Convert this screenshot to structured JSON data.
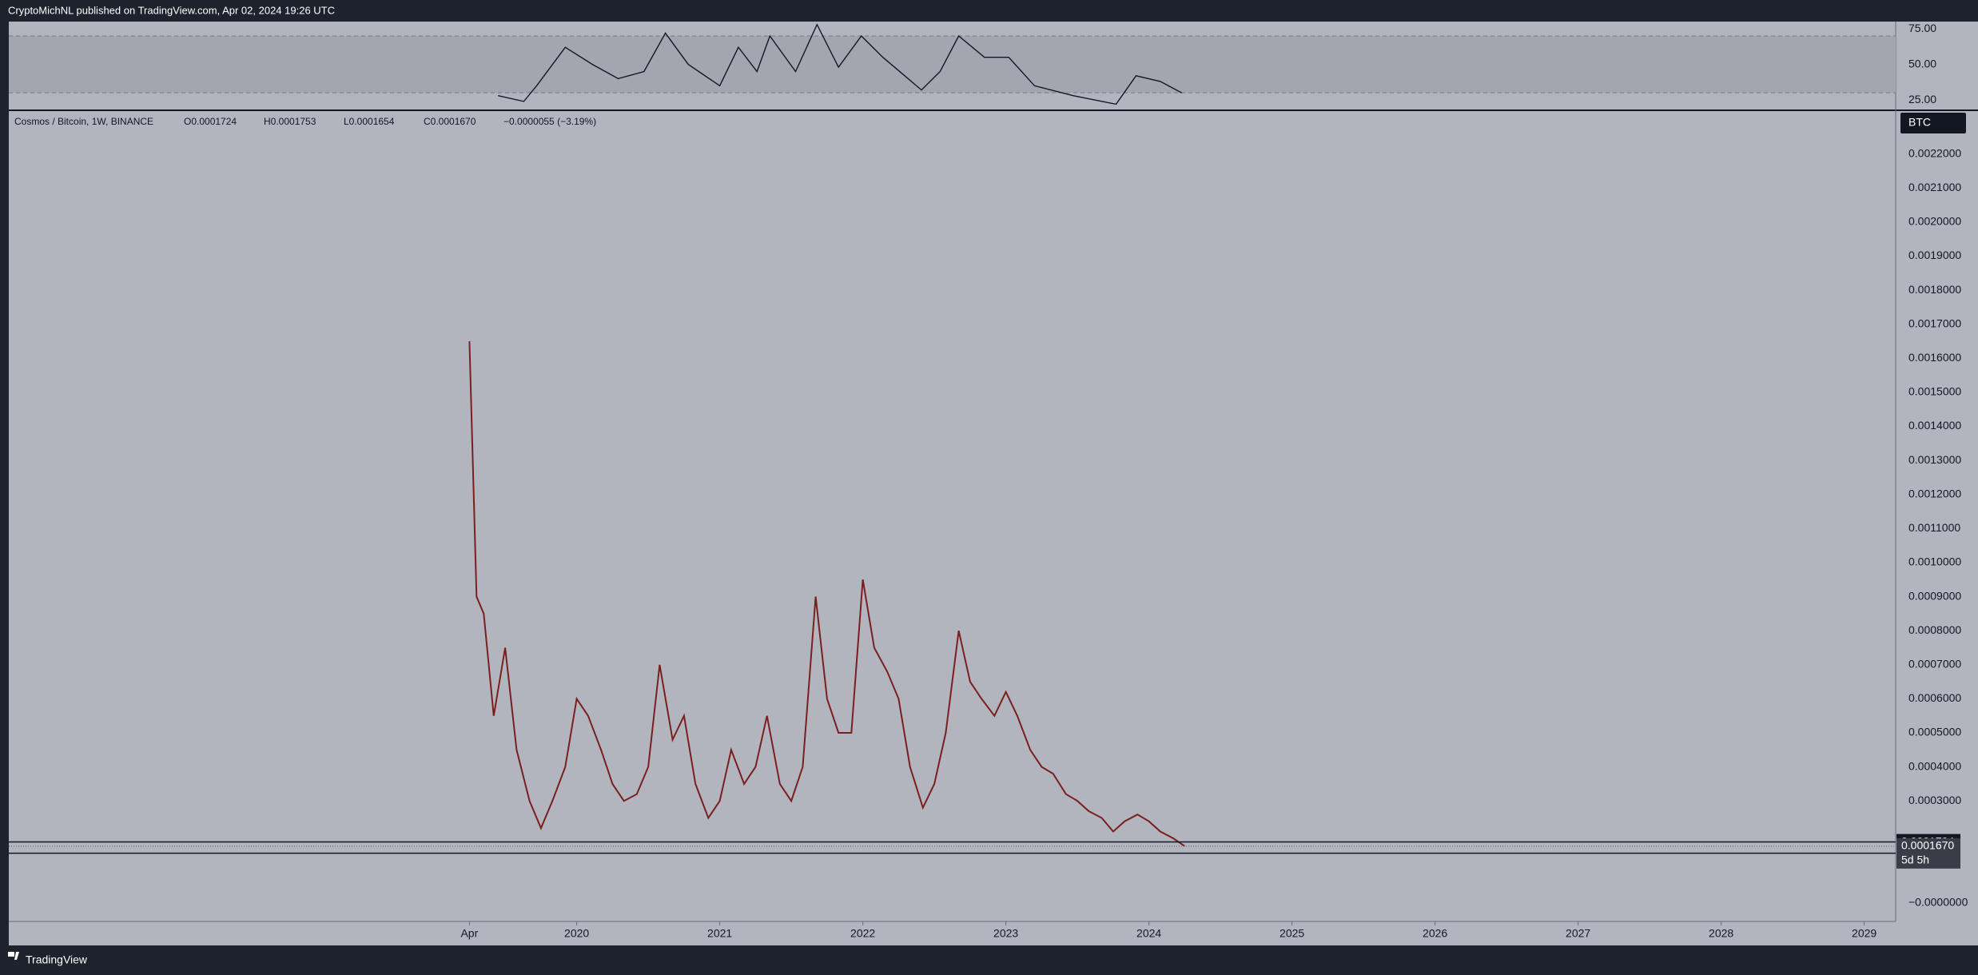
{
  "header": {
    "publisher": "CryptoMichNL published on TradingView.com, Apr 02, 2024 19:26 UTC"
  },
  "footer": {
    "brand": "TradingView"
  },
  "chart_data": [
    {
      "type": "line",
      "title": "Cosmos / Bitcoin, 1W, BINANCE",
      "ohlc": [
        "O0.0001724",
        "H0.0001753",
        "L0.0001654",
        "C0.0001670"
      ],
      "change": "−0.0000055 (−3.19%)",
      "currency": "BTC",
      "color": "#7a1f1f",
      "x": [
        2019.25,
        2019.3,
        2019.35,
        2019.42,
        2019.5,
        2019.58,
        2019.67,
        2019.75,
        2019.83,
        2019.92,
        2020,
        2020.08,
        2020.17,
        2020.25,
        2020.33,
        2020.42,
        2020.5,
        2020.58,
        2020.67,
        2020.75,
        2020.83,
        2020.92,
        2021,
        2021.08,
        2021.17,
        2021.25,
        2021.33,
        2021.42,
        2021.5,
        2021.58,
        2021.67,
        2021.75,
        2021.83,
        2021.92,
        2022,
        2022.08,
        2022.17,
        2022.25,
        2022.33,
        2022.42,
        2022.5,
        2022.58,
        2022.67,
        2022.75,
        2022.83,
        2022.92,
        2023,
        2023.08,
        2023.17,
        2023.25,
        2023.33,
        2023.42,
        2023.5,
        2023.58,
        2023.67,
        2023.75,
        2023.83,
        2023.92,
        2024,
        2024.08,
        2024.17,
        2024.25
      ],
      "values": [
        0.00165,
        0.0009,
        0.00085,
        0.00055,
        0.00075,
        0.00045,
        0.0003,
        0.00022,
        0.0003,
        0.0004,
        0.0006,
        0.00055,
        0.00045,
        0.00035,
        0.0003,
        0.00032,
        0.0004,
        0.0007,
        0.00048,
        0.00055,
        0.00035,
        0.00025,
        0.0003,
        0.00045,
        0.00035,
        0.0004,
        0.00055,
        0.00035,
        0.0003,
        0.0004,
        0.0009,
        0.0006,
        0.0005,
        0.0005,
        0.00095,
        0.00075,
        0.00068,
        0.0006,
        0.0004,
        0.00028,
        0.00035,
        0.0005,
        0.0008,
        0.00065,
        0.0006,
        0.00055,
        0.00062,
        0.00055,
        0.00045,
        0.0004,
        0.00038,
        0.00032,
        0.0003,
        0.00027,
        0.00025,
        0.00021,
        0.00024,
        0.00026,
        0.00024,
        0.00021,
        0.00019,
        0.000167
      ],
      "xlim": [
        2016.03,
        2029.22
      ],
      "xticks": [
        {
          "value": 2019.25,
          "label": "Apr"
        },
        2020,
        2021,
        2022,
        2023,
        2024,
        2025,
        2026,
        2027,
        2028,
        2029
      ],
      "ylim": [
        -5.4e-05,
        0.002326
      ],
      "yticks": [
        {
          "value": 0.0022,
          "label": "0.0022000"
        },
        {
          "value": 0.0021,
          "label": "0.0021000"
        },
        {
          "value": 0.002,
          "label": "0.0020000"
        },
        {
          "value": 0.0019,
          "label": "0.0019000"
        },
        {
          "value": 0.0018,
          "label": "0.0018000"
        },
        {
          "value": 0.0017,
          "label": "0.0017000"
        },
        {
          "value": 0.0016,
          "label": "0.0016000"
        },
        {
          "value": 0.0015,
          "label": "0.0015000"
        },
        {
          "value": 0.0014,
          "label": "0.0014000"
        },
        {
          "value": 0.0013,
          "label": "0.0013000"
        },
        {
          "value": 0.0012,
          "label": "0.0012000"
        },
        {
          "value": 0.0011,
          "label": "0.0011000"
        },
        {
          "value": 0.001,
          "label": "0.0010000"
        },
        {
          "value": 0.0009,
          "label": "0.0009000"
        },
        {
          "value": 0.0008,
          "label": "0.0008000"
        },
        {
          "value": 0.0007,
          "label": "0.0007000"
        },
        {
          "value": 0.0006,
          "label": "0.0006000"
        },
        {
          "value": 0.0005,
          "label": "0.0005000"
        },
        {
          "value": 0.0004,
          "label": "0.0004000"
        },
        {
          "value": 0.0003,
          "label": "0.0003000"
        },
        {
          "value": 0,
          "label": "−0.0000000"
        }
      ],
      "horizontal_lines": [
        0.0001794,
        0.0001463
      ],
      "last_price": {
        "value": 0.000167,
        "label": "0.0001670"
      },
      "countdown": "5d 5h"
    },
    {
      "type": "line",
      "color": "#131722",
      "x": [
        2019.45,
        2019.63,
        2019.72,
        2019.92,
        2020.11,
        2020.29,
        2020.47,
        2020.62,
        2020.78,
        2021,
        2021.13,
        2021.26,
        2021.35,
        2021.53,
        2021.68,
        2021.83,
        2021.99,
        2022.14,
        2022.41,
        2022.54,
        2022.67,
        2022.85,
        2023.02,
        2023.2,
        2023.47,
        2023.77,
        2023.91,
        2024.08,
        2024.23
      ],
      "values": [
        28,
        24,
        35,
        62,
        50,
        40,
        45,
        72,
        50,
        35,
        62,
        45,
        70,
        45,
        78,
        48,
        70,
        55,
        32,
        45,
        70,
        55,
        55,
        35,
        28,
        22,
        42,
        38,
        30
      ],
      "xlim": [
        2016.03,
        2029.22
      ],
      "ylim": [
        18.3,
        80.1
      ],
      "yticks": [
        {
          "value": 75,
          "label": "75.00"
        },
        {
          "value": 50,
          "label": "50.00"
        },
        {
          "value": 25,
          "label": "25.00"
        }
      ],
      "band": [
        30,
        70
      ]
    }
  ]
}
